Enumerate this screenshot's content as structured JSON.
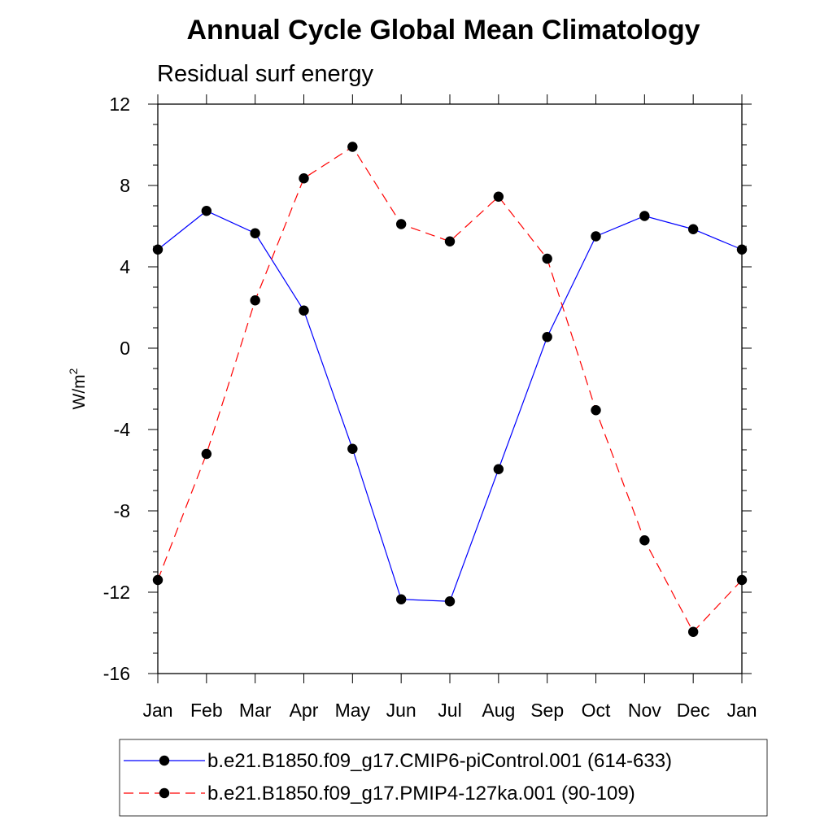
{
  "chart_data": {
    "type": "line",
    "title": "Annual Cycle Global Mean Climatology",
    "subtitle": "Residual surf energy",
    "ylabel_base": "W/m",
    "ylabel_sup": "2",
    "xlabel": "",
    "categories": [
      "Jan",
      "Feb",
      "Mar",
      "Apr",
      "May",
      "Jun",
      "Jul",
      "Aug",
      "Sep",
      "Oct",
      "Nov",
      "Dec",
      "Jan"
    ],
    "ylim": [
      -16,
      12
    ],
    "yticks": [
      -16,
      -12,
      -8,
      -4,
      0,
      4,
      8,
      12
    ],
    "ytick_labels": [
      "-16",
      "-12",
      "-8",
      "-4",
      "0",
      "4",
      "8",
      "12"
    ],
    "series": [
      {
        "name": "b.e21.B1850.f09_g17.CMIP6-piControl.001 (614-633)",
        "color": "#0000ff",
        "dash": "solid",
        "values": [
          4.85,
          6.75,
          5.65,
          1.85,
          -4.95,
          -12.35,
          -12.45,
          -5.95,
          0.55,
          5.5,
          6.5,
          5.85,
          4.85
        ]
      },
      {
        "name": "b.e21.B1850.f09_g17.PMIP4-127ka.001 (90-109)",
        "color": "#ff0000",
        "dash": "dashed",
        "values": [
          -11.4,
          -5.2,
          2.35,
          8.35,
          9.9,
          6.1,
          5.25,
          7.45,
          4.4,
          -3.05,
          -9.45,
          -13.95,
          -11.4
        ]
      }
    ],
    "legend_position": "bottom"
  }
}
